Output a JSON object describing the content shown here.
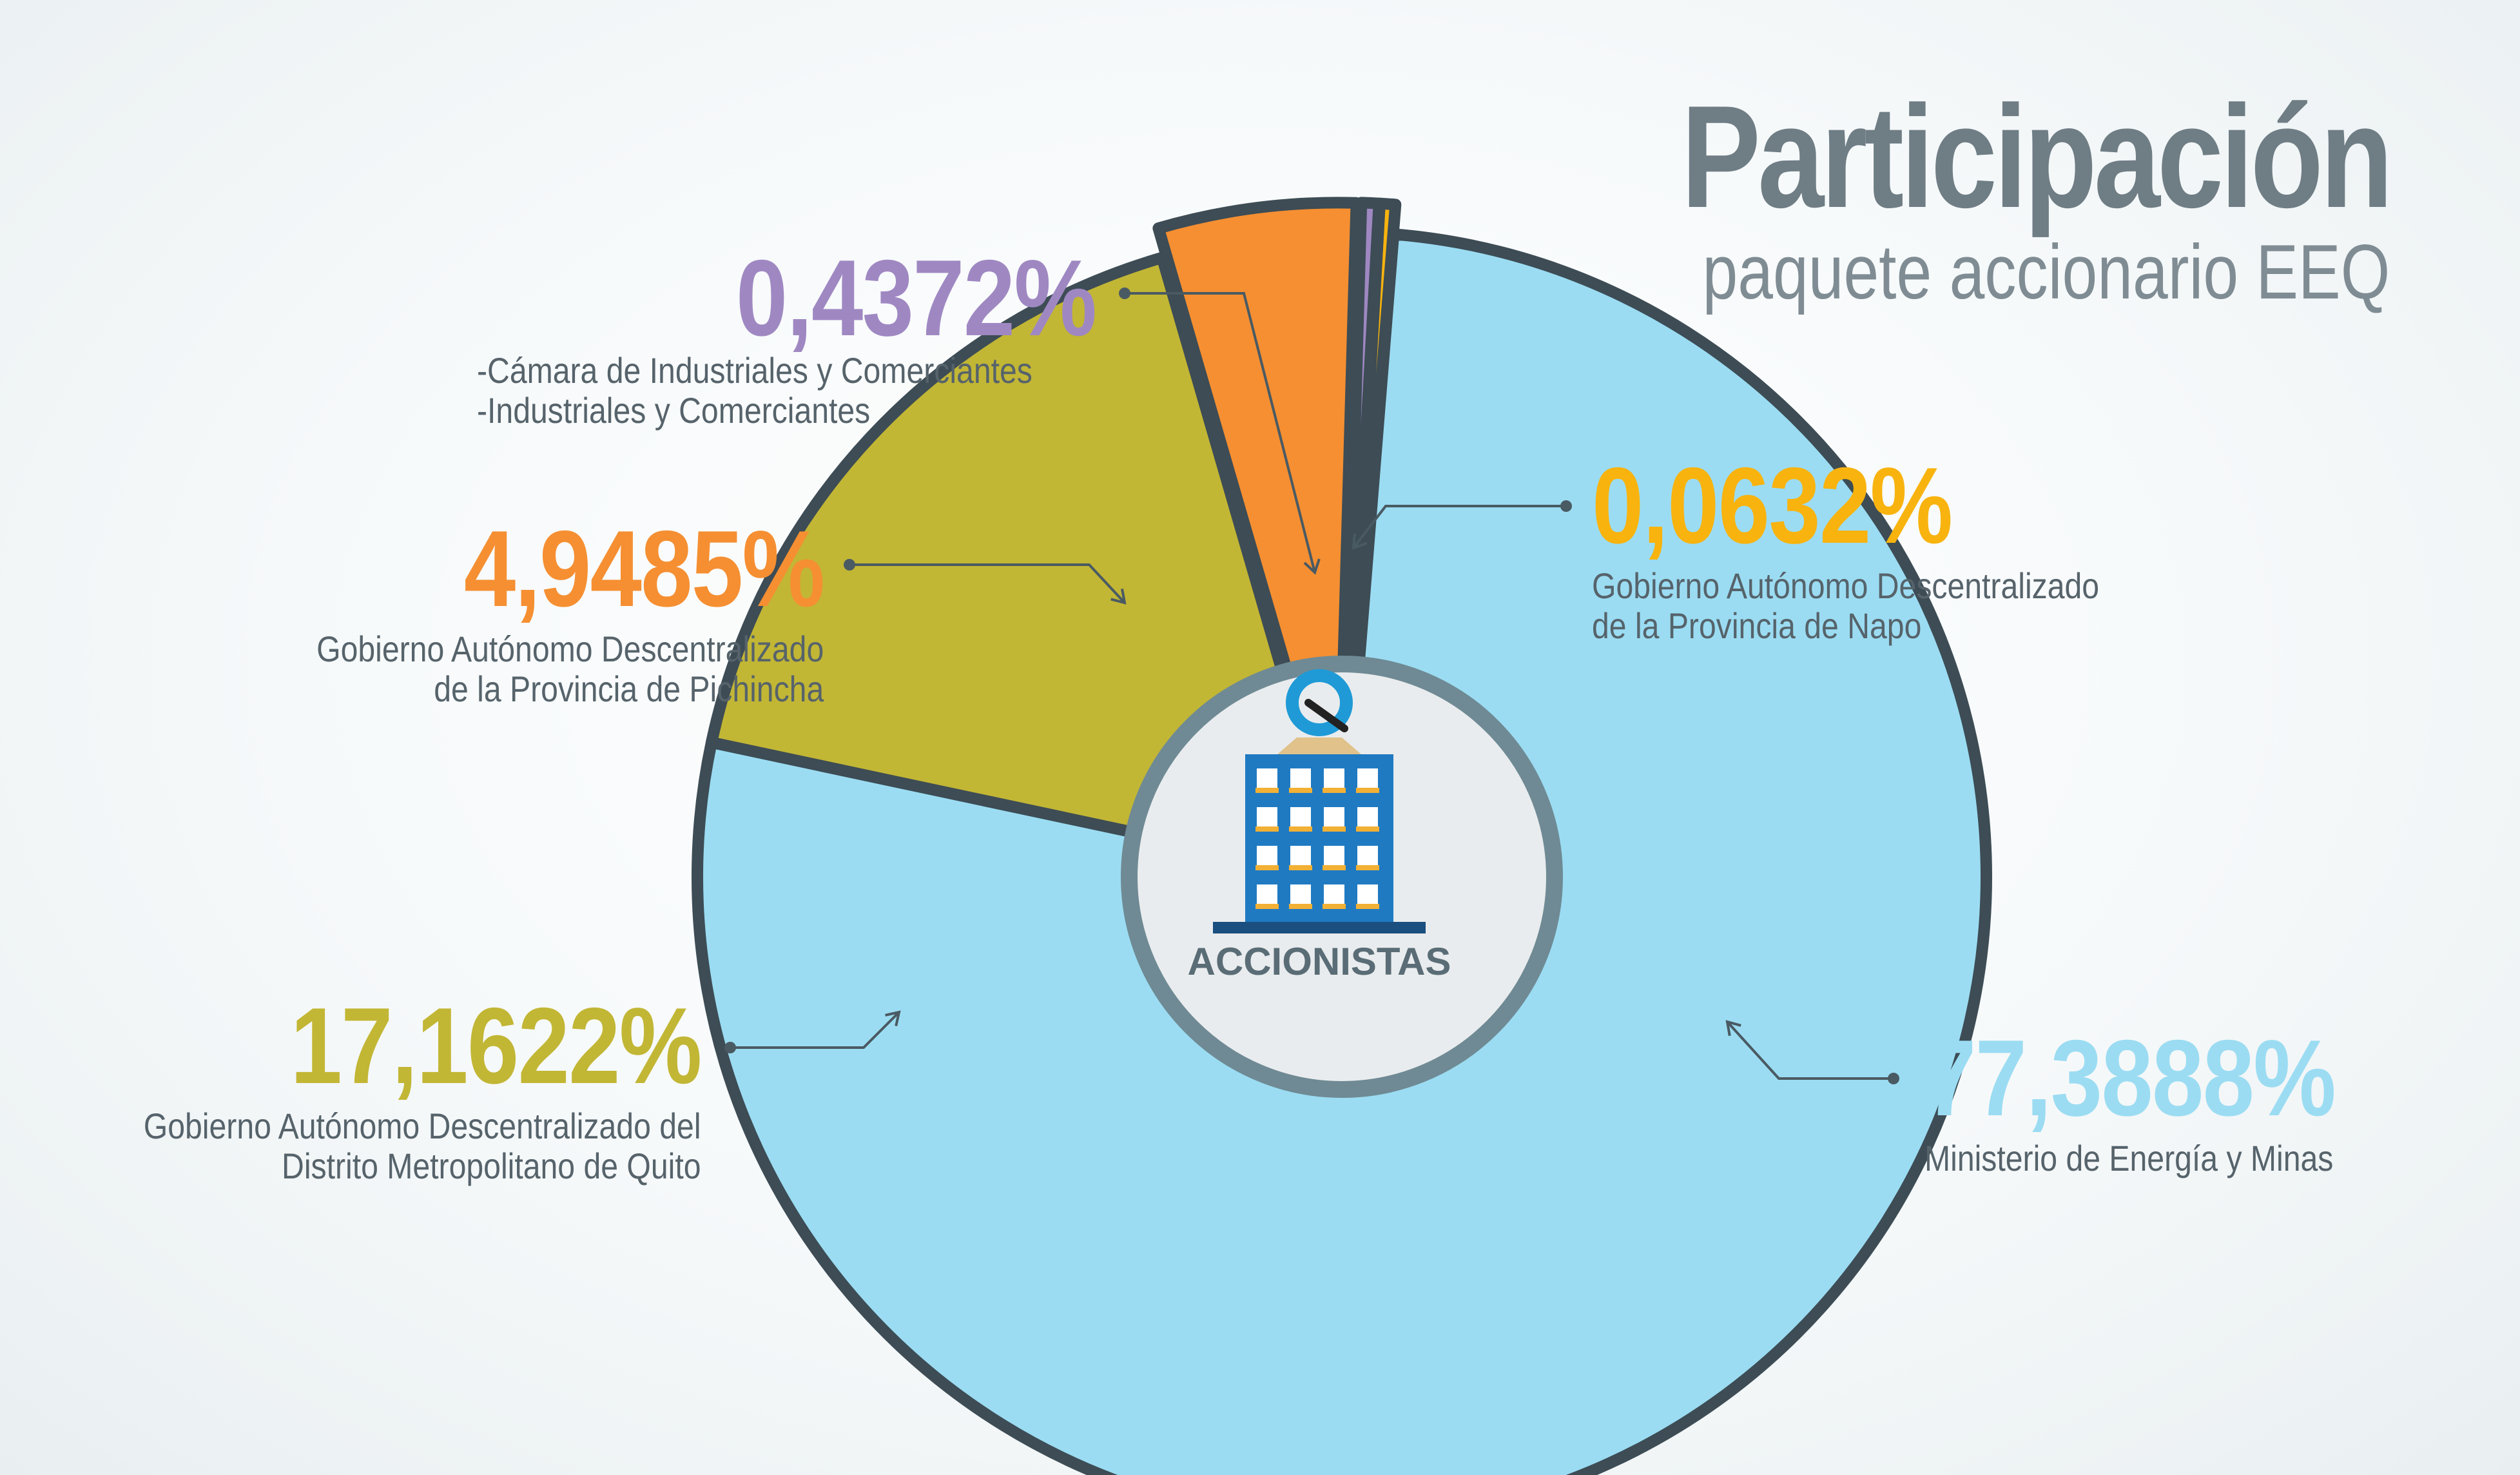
{
  "title": "Participación",
  "subtitle": "paquete accionario EEQ",
  "center_label": "ACCIONISTAS",
  "chart_data": {
    "type": "pie",
    "title": "Participación",
    "subtitle": "paquete accionario EEQ",
    "slices": [
      {
        "label": "Ministerio de Energía y Minas",
        "value": 77.3888,
        "value_text": "77,3888%",
        "color": "#9bdcf2",
        "desc": [
          "Ministerio de Energía y Minas"
        ]
      },
      {
        "label": "Gobierno Autónomo Descentralizado del Distrito Metropolitano de Quito",
        "value": 17.1622,
        "value_text": "17,1622%",
        "color": "#c2b635",
        "desc": [
          "Gobierno Autónomo Descentralizado del",
          "Distrito Metropolitano de Quito"
        ]
      },
      {
        "label": "Gobierno Autónomo Descentralizado de la Provincia de Pichincha",
        "value": 4.9485,
        "value_text": "4,9485%",
        "color": "#f58f32",
        "desc": [
          "Gobierno Autónomo Descentralizado",
          "de la Provincia de Pichincha"
        ]
      },
      {
        "label": "Cámara de Industriales y Comerciantes / Industriales y Comerciantes",
        "value": 0.4372,
        "value_text": "0,4372%",
        "color": "#9f88c2",
        "desc": [
          "-Cámara de Industriales y Comerciantes",
          "-Industriales y Comerciantes"
        ]
      },
      {
        "label": "Gobierno Autónomo Descentralizado de la Provincia de Napo",
        "value": 0.0632,
        "value_text": "0,0632%",
        "color": "#f8b30f",
        "desc": [
          "Gobierno Autónomo Descentralizado",
          "de la Provincia de Napo"
        ]
      }
    ]
  },
  "colors": {
    "outline": "#3d4c55",
    "inner_ring": "#6f8a94",
    "inner_fill": "#e9ecee",
    "building": "#1f7ac2",
    "building_dark": "#1a4f80",
    "windows": "#ffffff",
    "sills": "#f2b035",
    "logo_blue": "#1f9ad6",
    "title": "#6f7d85"
  }
}
